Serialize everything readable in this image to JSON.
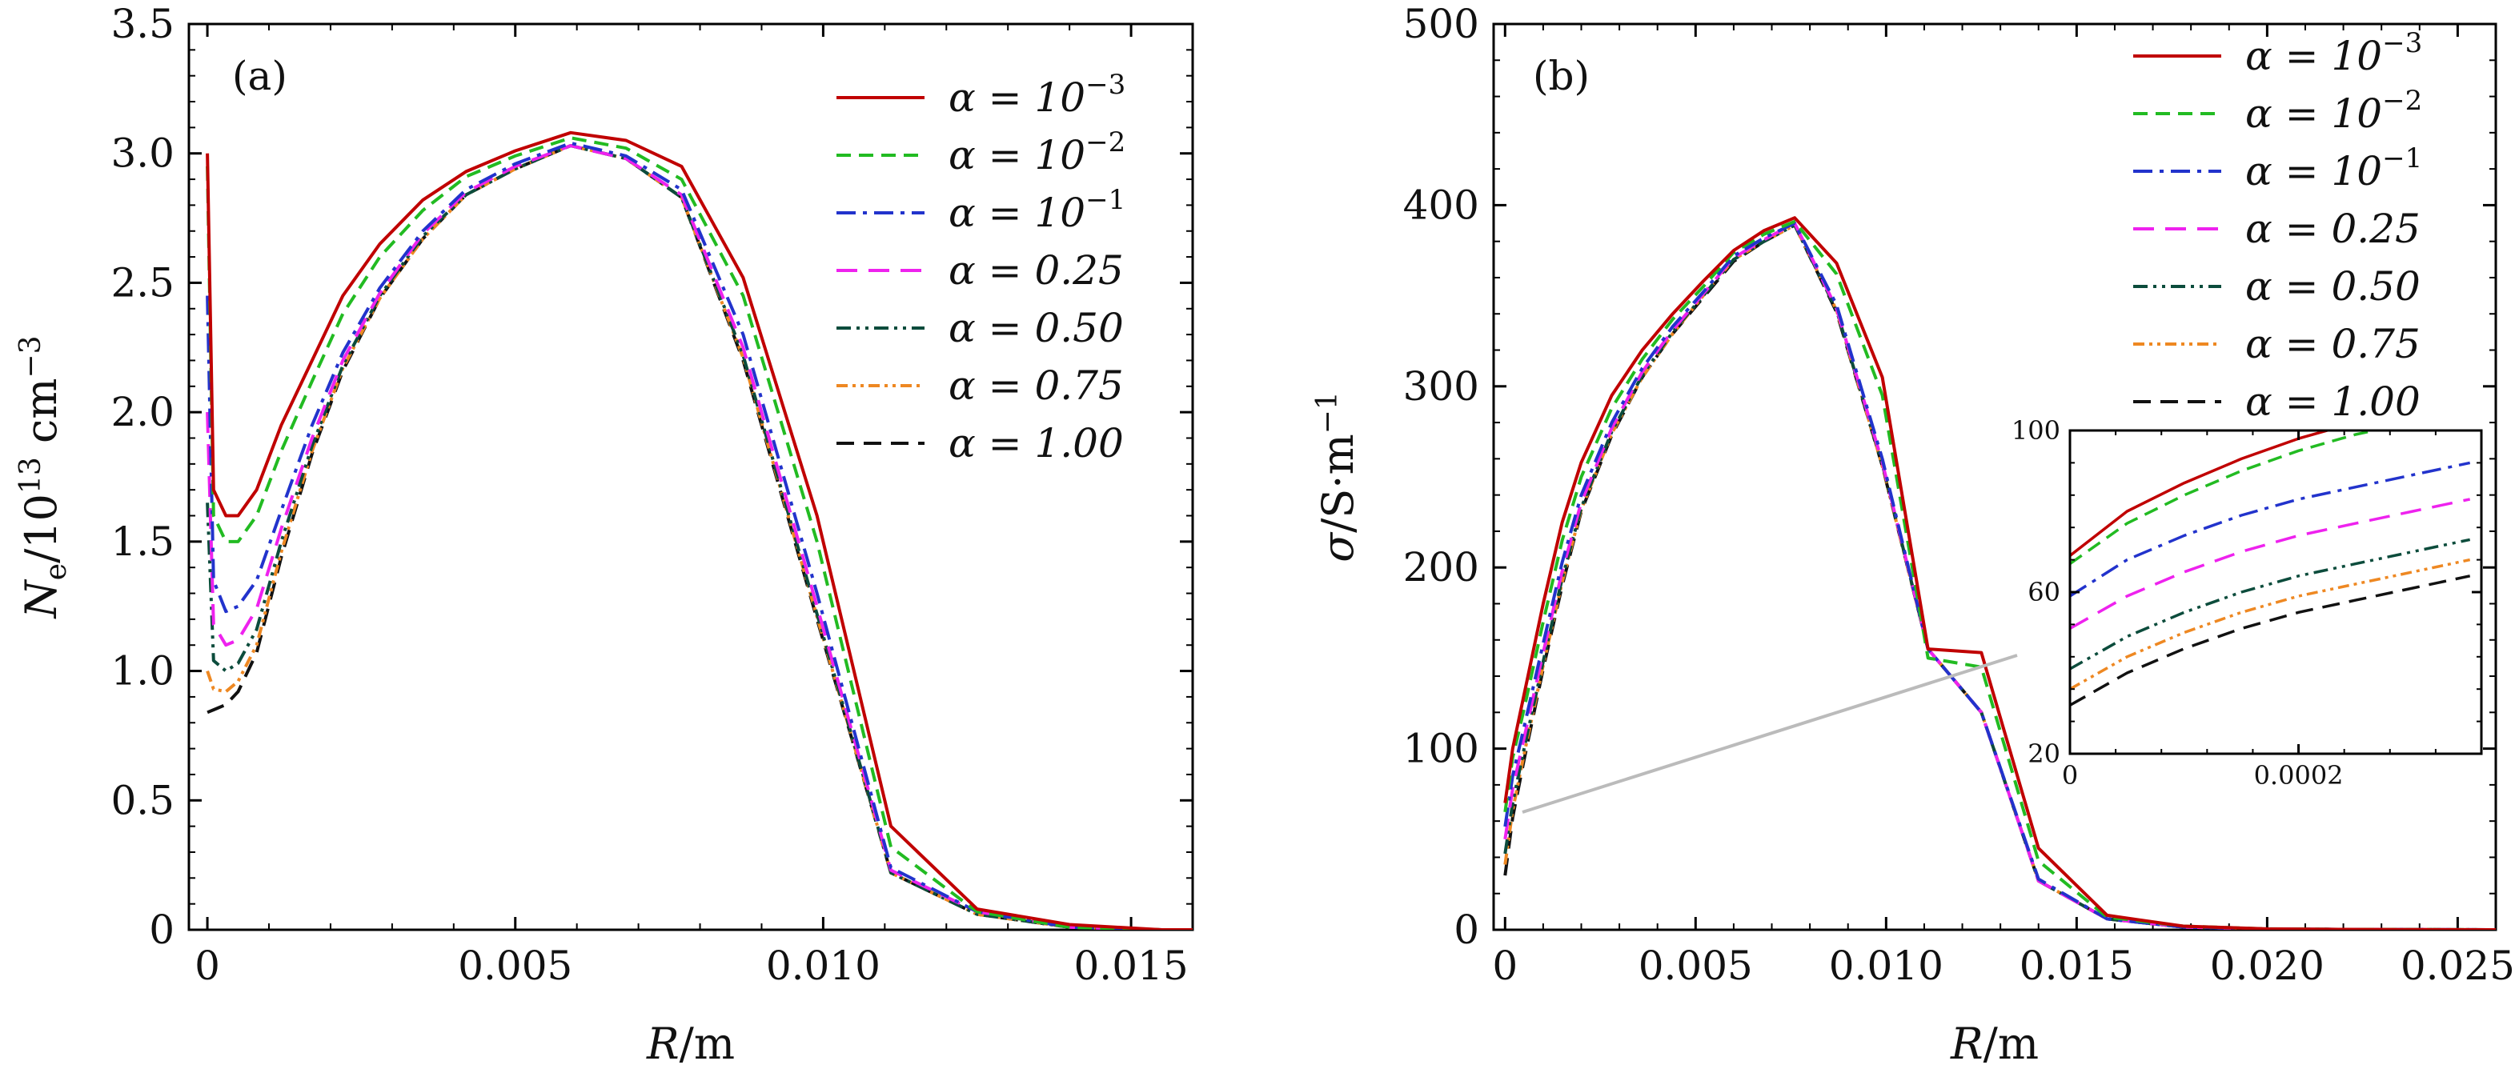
{
  "chart_data": [
    {
      "type": "line",
      "panel_label": "(a)",
      "xlabel": "R/m",
      "ylabel": "N_e/10^13 cm^-3",
      "xlim": [
        -0.0003,
        0.016
      ],
      "ylim": [
        0,
        3.5
      ],
      "xticks": [
        0,
        0.005,
        0.01,
        0.015
      ],
      "xtick_labels": [
        "0",
        "0.005",
        "0.010",
        "0.015"
      ],
      "yticks": [
        0,
        0.5,
        1.0,
        1.5,
        2.0,
        2.5,
        3.0,
        3.5
      ],
      "ytick_labels": [
        "0",
        "0.5",
        "1.0",
        "1.5",
        "2.0",
        "2.5",
        "3.0",
        "3.5"
      ],
      "legend_position": "top-right",
      "series": [
        {
          "name": "α = 10⁻³",
          "color": "#c00000",
          "dash": "solid",
          "x": [
            0,
            0.0001,
            0.0003,
            0.0005,
            0.0008,
            0.0012,
            0.0017,
            0.0022,
            0.0028,
            0.0035,
            0.0042,
            0.005,
            0.0059,
            0.0068,
            0.0077,
            0.0087,
            0.0099,
            0.0111,
            0.0125,
            0.014,
            0.0155,
            0.016
          ],
          "y": [
            3.0,
            1.7,
            1.6,
            1.6,
            1.7,
            1.95,
            2.2,
            2.45,
            2.65,
            2.82,
            2.93,
            3.01,
            3.08,
            3.05,
            2.95,
            2.52,
            1.6,
            0.4,
            0.08,
            0.02,
            0.0,
            0.0
          ]
        },
        {
          "name": "α = 10⁻²",
          "color": "#22bb22",
          "dash": "18,10",
          "x": [
            0,
            0.0001,
            0.0003,
            0.0005,
            0.0008,
            0.0012,
            0.0017,
            0.0022,
            0.0028,
            0.0035,
            0.0042,
            0.005,
            0.0059,
            0.0068,
            0.0077,
            0.0087,
            0.0099,
            0.0111,
            0.0125,
            0.014,
            0.0155,
            0.016
          ],
          "y": [
            2.95,
            1.6,
            1.5,
            1.5,
            1.6,
            1.85,
            2.12,
            2.38,
            2.6,
            2.78,
            2.91,
            2.99,
            3.06,
            3.02,
            2.9,
            2.45,
            1.5,
            0.32,
            0.07,
            0.01,
            0.0,
            0.0
          ]
        },
        {
          "name": "α = 10⁻¹",
          "color": "#2233cc",
          "dash": "24,9,5,9",
          "x": [
            0,
            0.0001,
            0.0003,
            0.0005,
            0.0008,
            0.0012,
            0.0017,
            0.0022,
            0.0028,
            0.0035,
            0.0042,
            0.005,
            0.0059,
            0.0068,
            0.0077,
            0.0087,
            0.0099,
            0.0111,
            0.0125,
            0.014,
            0.0155,
            0.016
          ],
          "y": [
            2.45,
            1.35,
            1.23,
            1.25,
            1.35,
            1.62,
            1.95,
            2.23,
            2.48,
            2.7,
            2.86,
            2.96,
            3.04,
            2.99,
            2.86,
            2.3,
            1.3,
            0.24,
            0.07,
            0.01,
            0.0,
            0.0
          ]
        },
        {
          "name": "α = 0.25",
          "color": "#ee22ee",
          "dash": "26,14",
          "x": [
            0,
            0.0001,
            0.0003,
            0.0005,
            0.0008,
            0.0012,
            0.0017,
            0.0022,
            0.0028,
            0.0035,
            0.0042,
            0.005,
            0.0059,
            0.0068,
            0.0077,
            0.0087,
            0.0099,
            0.0111,
            0.0125,
            0.014,
            0.0155,
            0.016
          ],
          "y": [
            2.0,
            1.18,
            1.1,
            1.12,
            1.24,
            1.55,
            1.9,
            2.2,
            2.46,
            2.69,
            2.85,
            2.95,
            3.03,
            2.98,
            2.84,
            2.25,
            1.25,
            0.23,
            0.07,
            0.01,
            0.0,
            0.0
          ]
        },
        {
          "name": "α = 0.50",
          "color": "#0c4c3c",
          "dash": "18,7,4,7,4,7",
          "x": [
            0,
            0.0001,
            0.0003,
            0.0005,
            0.0008,
            0.0012,
            0.0017,
            0.0022,
            0.0028,
            0.0035,
            0.0042,
            0.005,
            0.0059,
            0.0068,
            0.0077,
            0.0087,
            0.0099,
            0.0111,
            0.0125,
            0.014,
            0.0155,
            0.016
          ],
          "y": [
            1.65,
            1.04,
            1.0,
            1.03,
            1.16,
            1.5,
            1.87,
            2.18,
            2.45,
            2.68,
            2.84,
            2.94,
            3.03,
            2.98,
            2.83,
            2.22,
            1.22,
            0.22,
            0.06,
            0.01,
            0.0,
            0.0
          ]
        },
        {
          "name": "α = 0.75",
          "color": "#ee8822",
          "dash": "14,6,4,6,4,6",
          "x": [
            0,
            0.0001,
            0.0003,
            0.0005,
            0.0008,
            0.0012,
            0.0017,
            0.0022,
            0.0028,
            0.0035,
            0.0042,
            0.005,
            0.0059,
            0.0068,
            0.0077,
            0.0087,
            0.0099,
            0.0111,
            0.0125,
            0.014,
            0.0155,
            0.016
          ],
          "y": [
            1.0,
            0.93,
            0.92,
            0.96,
            1.1,
            1.46,
            1.85,
            2.17,
            2.44,
            2.67,
            2.84,
            2.94,
            3.03,
            2.98,
            2.83,
            2.21,
            1.21,
            0.22,
            0.06,
            0.01,
            0.0,
            0.0
          ]
        },
        {
          "name": "α = 1.00",
          "color": "#111111",
          "dash": "22,12",
          "x": [
            0,
            0.0001,
            0.0003,
            0.0005,
            0.0008,
            0.0012,
            0.0017,
            0.0022,
            0.0028,
            0.0035,
            0.0042,
            0.005,
            0.0059,
            0.0068,
            0.0077,
            0.0087,
            0.0099,
            0.0111,
            0.0125,
            0.014,
            0.0155,
            0.016
          ],
          "y": [
            0.84,
            0.85,
            0.87,
            0.92,
            1.07,
            1.44,
            1.84,
            2.16,
            2.44,
            2.67,
            2.84,
            2.94,
            3.03,
            2.98,
            2.83,
            2.2,
            1.2,
            0.22,
            0.06,
            0.01,
            0.0,
            0.0
          ]
        }
      ]
    },
    {
      "type": "line",
      "panel_label": "(b)",
      "xlabel": "R/m",
      "ylabel": "σ/S·m^-1",
      "xlim": [
        -0.0003,
        0.026
      ],
      "ylim": [
        0,
        500
      ],
      "xticks": [
        0,
        0.005,
        0.01,
        0.015,
        0.02,
        0.025
      ],
      "xtick_labels": [
        "0",
        "0.005",
        "0.010",
        "0.015",
        "0.020",
        "0.025"
      ],
      "yticks": [
        0,
        100,
        200,
        300,
        400,
        500
      ],
      "ytick_labels": [
        "0",
        "100",
        "200",
        "300",
        "400",
        "500"
      ],
      "legend_position": "top-right",
      "series": [
        {
          "name": "α = 10⁻³",
          "color": "#c00000",
          "dash": "solid",
          "x": [
            0,
            0.0002,
            0.0005,
            0.001,
            0.0015,
            0.002,
            0.0028,
            0.0036,
            0.0044,
            0.0052,
            0.006,
            0.0068,
            0.0076,
            0.0087,
            0.0099,
            0.0111,
            0.0125,
            0.014,
            0.0158,
            0.0178,
            0.02,
            0.022,
            0.026
          ],
          "y": [
            70,
            100,
            130,
            180,
            225,
            258,
            295,
            320,
            340,
            358,
            375,
            386,
            393,
            368,
            305,
            155,
            153,
            45,
            8,
            2,
            0.5,
            0.2,
            0
          ],
          "inset_x": [
            0,
            5e-05,
            0.0001,
            0.00015,
            0.0002,
            0.00025,
            0.0003,
            0.00035
          ],
          "inset_y": [
            69,
            80,
            87,
            93,
            98,
            102,
            106,
            110
          ]
        },
        {
          "name": "α = 10⁻²",
          "color": "#22bb22",
          "dash": "18,10",
          "x": [
            0,
            0.0002,
            0.0005,
            0.001,
            0.0015,
            0.002,
            0.0028,
            0.0036,
            0.0044,
            0.0052,
            0.006,
            0.0068,
            0.0076,
            0.0087,
            0.0099,
            0.0111,
            0.0125,
            0.014,
            0.0158,
            0.0178,
            0.02,
            0.022,
            0.026
          ],
          "y": [
            65,
            95,
            122,
            170,
            215,
            250,
            288,
            315,
            337,
            355,
            374,
            384,
            391,
            362,
            295,
            150,
            145,
            38,
            7,
            2,
            0.5,
            0.2,
            0
          ],
          "inset_x": [
            0,
            5e-05,
            0.0001,
            0.00015,
            0.0002,
            0.00025,
            0.0003,
            0.00035
          ],
          "inset_y": [
            67,
            77,
            84,
            90,
            95,
            99,
            102,
            106
          ]
        },
        {
          "name": "α = 10⁻¹",
          "color": "#2233cc",
          "dash": "24,9,5,9",
          "x": [
            0,
            0.0002,
            0.0005,
            0.001,
            0.0015,
            0.002,
            0.0028,
            0.0036,
            0.0044,
            0.0052,
            0.006,
            0.0068,
            0.0076,
            0.0087,
            0.0099,
            0.0111,
            0.0125,
            0.014,
            0.0158,
            0.0178,
            0.02,
            0.022,
            0.026
          ],
          "y": [
            57,
            85,
            112,
            158,
            203,
            240,
            280,
            310,
            333,
            352,
            372,
            382,
            390,
            345,
            260,
            155,
            120,
            28,
            6,
            1.5,
            0.4,
            0.2,
            0
          ],
          "inset_x": [
            0,
            5e-05,
            0.0001,
            0.00015,
            0.0002,
            0.00025,
            0.0003,
            0.00035
          ],
          "inset_y": [
            59,
            68,
            74,
            79,
            83,
            86,
            89,
            92
          ]
        },
        {
          "name": "α = 0.25",
          "color": "#ee22ee",
          "dash": "26,14",
          "x": [
            0,
            0.0002,
            0.0005,
            0.001,
            0.0015,
            0.002,
            0.0028,
            0.0036,
            0.0044,
            0.0052,
            0.006,
            0.0068,
            0.0076,
            0.0087,
            0.0099,
            0.0111,
            0.0125,
            0.014,
            0.0158,
            0.0178,
            0.02,
            0.022,
            0.026
          ],
          "y": [
            50,
            78,
            106,
            153,
            198,
            236,
            277,
            308,
            331,
            351,
            371,
            381,
            390,
            343,
            258,
            155,
            120,
            27,
            6,
            1.5,
            0.4,
            0.2,
            0
          ],
          "inset_x": [
            0,
            5e-05,
            0.0001,
            0.00015,
            0.0002,
            0.00025,
            0.0003,
            0.00035
          ],
          "inset_y": [
            51,
            59,
            65,
            70,
            74,
            77,
            80,
            83
          ]
        },
        {
          "name": "α = 0.50",
          "color": "#0c4c3c",
          "dash": "18,7,4,7,4,7",
          "x": [
            0,
            0.0002,
            0.0005,
            0.001,
            0.0015,
            0.002,
            0.0028,
            0.0036,
            0.0044,
            0.0052,
            0.006,
            0.0068,
            0.0076,
            0.0087,
            0.0099,
            0.0111,
            0.0125,
            0.014,
            0.0158,
            0.0178,
            0.02,
            0.022,
            0.026
          ],
          "y": [
            42,
            70,
            100,
            148,
            194,
            233,
            275,
            306,
            330,
            350,
            370,
            380,
            389,
            342,
            257,
            155,
            120,
            27,
            6,
            1.5,
            0.4,
            0.2,
            0
          ],
          "inset_x": [
            0,
            5e-05,
            0.0001,
            0.00015,
            0.0002,
            0.00025,
            0.0003,
            0.00035
          ],
          "inset_y": [
            41,
            49,
            55,
            60,
            64,
            67,
            70,
            73
          ]
        },
        {
          "name": "α = 0.75",
          "color": "#ee8822",
          "dash": "14,6,4,6,4,6",
          "x": [
            0,
            0.0002,
            0.0005,
            0.001,
            0.0015,
            0.002,
            0.0028,
            0.0036,
            0.0044,
            0.0052,
            0.006,
            0.0068,
            0.0076,
            0.0087,
            0.0099,
            0.0111,
            0.0125,
            0.014,
            0.0158,
            0.0178,
            0.02,
            0.022,
            0.026
          ],
          "y": [
            36,
            66,
            97,
            146,
            192,
            232,
            274,
            305,
            329,
            350,
            370,
            380,
            389,
            342,
            256,
            155,
            120,
            27,
            6,
            1.5,
            0.4,
            0.2,
            0
          ],
          "inset_x": [
            0,
            5e-05,
            0.0001,
            0.00015,
            0.0002,
            0.00025,
            0.0003,
            0.00035
          ],
          "inset_y": [
            36,
            44,
            50,
            55,
            59,
            62,
            65,
            68
          ]
        },
        {
          "name": "α = 1.00",
          "color": "#111111",
          "dash": "22,12",
          "x": [
            0,
            0.0002,
            0.0005,
            0.001,
            0.0015,
            0.002,
            0.0028,
            0.0036,
            0.0044,
            0.0052,
            0.006,
            0.0068,
            0.0076,
            0.0087,
            0.0099,
            0.0111,
            0.0125,
            0.014,
            0.0158,
            0.0178,
            0.02,
            0.022,
            0.026
          ],
          "y": [
            30,
            62,
            94,
            144,
            190,
            231,
            273,
            305,
            329,
            349,
            369,
            380,
            389,
            341,
            256,
            155,
            120,
            27,
            6,
            1.5,
            0.4,
            0.2,
            0
          ],
          "inset_x": [
            0,
            5e-05,
            0.0001,
            0.00015,
            0.0002,
            0.00025,
            0.0003,
            0.00035
          ],
          "inset_y": [
            32,
            40,
            46,
            51,
            55,
            58,
            61,
            64
          ]
        }
      ],
      "inset": {
        "xlim": [
          0,
          0.00036
        ],
        "ylim": [
          20,
          100
        ],
        "xticks": [
          0,
          0.0002
        ],
        "xtick_labels": [
          "0",
          "0.0002"
        ],
        "yticks": [
          20,
          60,
          100
        ],
        "ytick_labels": [
          "20",
          "60",
          "100"
        ]
      }
    }
  ]
}
